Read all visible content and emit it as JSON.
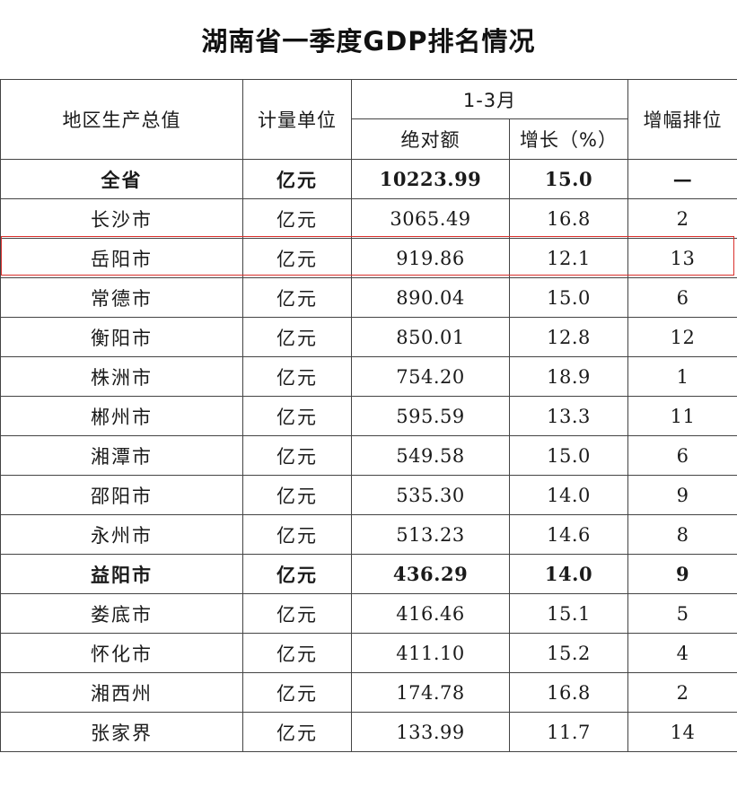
{
  "title": "湖南省一季度GDP排名情况",
  "headers": {
    "region": "地区生产总值",
    "unit": "计量单位",
    "period": "1-3月",
    "absolute": "绝对额",
    "growth": "增长（%）",
    "rank": "增幅排位"
  },
  "rows": [
    {
      "name": "全省",
      "unit": "亿元",
      "value": "10223.99",
      "growth": "15.0",
      "rank": "—",
      "bold": true
    },
    {
      "name": "长沙市",
      "unit": "亿元",
      "value": "3065.49",
      "growth": "16.8",
      "rank": "2"
    },
    {
      "name": "岳阳市",
      "unit": "亿元",
      "value": "919.86",
      "growth": "12.1",
      "rank": "13",
      "highlighted": true
    },
    {
      "name": "常德市",
      "unit": "亿元",
      "value": "890.04",
      "growth": "15.0",
      "rank": "6"
    },
    {
      "name": "衡阳市",
      "unit": "亿元",
      "value": "850.01",
      "growth": "12.8",
      "rank": "12"
    },
    {
      "name": "株洲市",
      "unit": "亿元",
      "value": "754.20",
      "growth": "18.9",
      "rank": "1"
    },
    {
      "name": "郴州市",
      "unit": "亿元",
      "value": "595.59",
      "growth": "13.3",
      "rank": "11"
    },
    {
      "name": "湘潭市",
      "unit": "亿元",
      "value": "549.58",
      "growth": "15.0",
      "rank": "6"
    },
    {
      "name": "邵阳市",
      "unit": "亿元",
      "value": "535.30",
      "growth": "14.0",
      "rank": "9"
    },
    {
      "name": "永州市",
      "unit": "亿元",
      "value": "513.23",
      "growth": "14.6",
      "rank": "8"
    },
    {
      "name": "益阳市",
      "unit": "亿元",
      "value": "436.29",
      "growth": "14.0",
      "rank": "9",
      "bold": true
    },
    {
      "name": "娄底市",
      "unit": "亿元",
      "value": "416.46",
      "growth": "15.1",
      "rank": "5"
    },
    {
      "name": "怀化市",
      "unit": "亿元",
      "value": "411.10",
      "growth": "15.2",
      "rank": "4"
    },
    {
      "name": "湘西州",
      "unit": "亿元",
      "value": "174.78",
      "growth": "16.8",
      "rank": "2"
    },
    {
      "name": "张家界",
      "unit": "亿元",
      "value": "133.99",
      "growth": "11.7",
      "rank": "14"
    }
  ],
  "colors": {
    "highlight_border": "#d9302c",
    "grid": "#444444",
    "text": "#1a1a1a"
  }
}
